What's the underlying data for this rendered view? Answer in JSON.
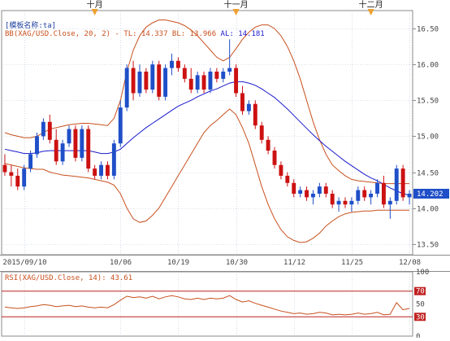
{
  "header": {
    "template_label": "[模板名称:ta]",
    "bb_label": "BB(XAG/USD.Close, 20, 2)  -",
    "tl_label": "TL: 14.337",
    "bl_label": "BL: 13.966",
    "al_label": "AL: 14.181",
    "rsi_label": "RSI(XAG/USD.Close, 14): 43.61"
  },
  "months": [
    {
      "label": "十月",
      "index": 14
    },
    {
      "label": "十一月",
      "index": 36
    },
    {
      "label": "十二月",
      "index": 57
    }
  ],
  "current_price_label": "14.202",
  "colors": {
    "up": "#1f4fc8",
    "down": "#cc1111",
    "ma": "#1a1acc",
    "band": "#c8501e",
    "rsi": "#c8501e",
    "rsi_level": "#c02020",
    "price_box": "#1f4fc8",
    "axis_text": "#444444",
    "marker": "#f0a030"
  },
  "chart_data": [
    {
      "type": "candlestick",
      "title": "",
      "series_name": "XAG/USD",
      "x_tick_labels": [
        {
          "label": "2015/09/10",
          "index": 3
        },
        {
          "label": "10/06",
          "index": 18
        },
        {
          "label": "10/19",
          "index": 27
        },
        {
          "label": "10/30",
          "index": 36
        },
        {
          "label": "11/12",
          "index": 45
        },
        {
          "label": "11/25",
          "index": 54
        },
        {
          "label": "12/08",
          "index": 63
        }
      ],
      "y_ticks": [
        13.5,
        14.0,
        14.5,
        15.0,
        15.5,
        16.0,
        16.5
      ],
      "ylim": [
        13.35,
        16.75
      ],
      "grid": true,
      "ohlc": [
        [
          14.6,
          14.75,
          14.45,
          14.5
        ],
        [
          14.5,
          14.6,
          14.3,
          14.45
        ],
        [
          14.45,
          14.55,
          14.25,
          14.3
        ],
        [
          14.3,
          14.6,
          14.25,
          14.55
        ],
        [
          14.55,
          14.8,
          14.5,
          14.75
        ],
        [
          14.75,
          15.05,
          14.7,
          15.0
        ],
        [
          15.0,
          15.25,
          14.95,
          15.2
        ],
        [
          15.2,
          15.3,
          14.9,
          14.95
        ],
        [
          14.95,
          15.1,
          14.6,
          14.65
        ],
        [
          14.65,
          14.95,
          14.6,
          14.9
        ],
        [
          14.9,
          15.15,
          14.85,
          15.1
        ],
        [
          15.1,
          15.15,
          14.65,
          14.7
        ],
        [
          14.7,
          15.15,
          14.65,
          15.1
        ],
        [
          15.1,
          15.15,
          14.5,
          14.55
        ],
        [
          14.55,
          14.6,
          14.4,
          14.45
        ],
        [
          14.45,
          14.65,
          14.4,
          14.6
        ],
        [
          14.6,
          14.65,
          14.4,
          14.45
        ],
        [
          14.45,
          14.95,
          14.4,
          14.9
        ],
        [
          14.9,
          15.5,
          14.85,
          15.4
        ],
        [
          15.4,
          16.0,
          15.35,
          15.95
        ],
        [
          15.95,
          16.05,
          15.5,
          15.6
        ],
        [
          15.6,
          16.0,
          15.55,
          15.9
        ],
        [
          15.9,
          15.95,
          15.6,
          15.65
        ],
        [
          15.65,
          16.05,
          15.6,
          16.0
        ],
        [
          16.0,
          16.05,
          15.5,
          15.55
        ],
        [
          15.55,
          16.0,
          15.5,
          15.95
        ],
        [
          15.95,
          16.15,
          15.85,
          16.05
        ],
        [
          16.05,
          16.1,
          15.9,
          15.95
        ],
        [
          15.95,
          16.0,
          15.75,
          15.8
        ],
        [
          15.8,
          15.95,
          15.6,
          15.65
        ],
        [
          15.65,
          15.9,
          15.6,
          15.85
        ],
        [
          15.85,
          15.9,
          15.6,
          15.65
        ],
        [
          15.65,
          15.95,
          15.6,
          15.9
        ],
        [
          15.9,
          15.95,
          15.75,
          15.8
        ],
        [
          15.8,
          15.95,
          15.75,
          15.9
        ],
        [
          15.9,
          16.35,
          15.85,
          15.95
        ],
        [
          15.95,
          16.0,
          15.55,
          15.6
        ],
        [
          15.6,
          15.7,
          15.3,
          15.35
        ],
        [
          15.35,
          15.5,
          15.3,
          15.45
        ],
        [
          15.45,
          15.5,
          15.1,
          15.15
        ],
        [
          15.15,
          15.2,
          14.9,
          14.95
        ],
        [
          14.95,
          15.0,
          14.75,
          14.8
        ],
        [
          14.8,
          14.85,
          14.55,
          14.6
        ],
        [
          14.6,
          14.65,
          14.4,
          14.45
        ],
        [
          14.45,
          14.5,
          14.3,
          14.35
        ],
        [
          14.35,
          14.4,
          14.15,
          14.2
        ],
        [
          14.2,
          14.3,
          14.15,
          14.25
        ],
        [
          14.25,
          14.3,
          14.1,
          14.15
        ],
        [
          14.15,
          14.25,
          14.05,
          14.2
        ],
        [
          14.2,
          14.35,
          14.15,
          14.3
        ],
        [
          14.3,
          14.35,
          14.15,
          14.2
        ],
        [
          14.2,
          14.25,
          14.0,
          14.05
        ],
        [
          14.05,
          14.15,
          13.95,
          14.1
        ],
        [
          14.1,
          14.15,
          14.0,
          14.05
        ],
        [
          14.05,
          14.15,
          13.95,
          14.1
        ],
        [
          14.1,
          14.3,
          14.05,
          14.25
        ],
        [
          14.25,
          14.3,
          14.1,
          14.15
        ],
        [
          14.15,
          14.25,
          14.05,
          14.2
        ],
        [
          14.2,
          14.4,
          14.15,
          14.35
        ],
        [
          14.35,
          14.45,
          14.0,
          14.05
        ],
        [
          14.05,
          14.15,
          13.85,
          14.1
        ],
        [
          14.1,
          14.6,
          14.05,
          14.55
        ],
        [
          14.55,
          14.6,
          14.1,
          14.15
        ],
        [
          14.15,
          14.25,
          14.05,
          14.2
        ]
      ],
      "ma": [
        14.82,
        14.8,
        14.78,
        14.76,
        14.76,
        14.77,
        14.79,
        14.8,
        14.8,
        14.8,
        14.8,
        14.8,
        14.8,
        14.8,
        14.78,
        14.76,
        14.76,
        14.78,
        14.82,
        14.9,
        14.98,
        15.05,
        15.12,
        15.18,
        15.24,
        15.3,
        15.36,
        15.42,
        15.46,
        15.5,
        15.55,
        15.59,
        15.63,
        15.66,
        15.7,
        15.74,
        15.76,
        15.76,
        15.74,
        15.71,
        15.66,
        15.6,
        15.54,
        15.46,
        15.38,
        15.29,
        15.2,
        15.11,
        15.02,
        14.94,
        14.86,
        14.79,
        14.72,
        14.65,
        14.59,
        14.53,
        14.47,
        14.42,
        14.38,
        14.33,
        14.28,
        14.24,
        14.2,
        14.18
      ],
      "upper_band": [
        15.05,
        15.02,
        15.0,
        14.98,
        14.98,
        15.0,
        15.05,
        15.1,
        15.12,
        15.14,
        15.16,
        15.17,
        15.18,
        15.18,
        15.17,
        15.16,
        15.15,
        15.25,
        15.5,
        15.9,
        16.2,
        16.4,
        16.52,
        16.58,
        16.62,
        16.62,
        16.6,
        16.58,
        16.54,
        16.48,
        16.4,
        16.3,
        16.2,
        16.1,
        16.05,
        16.1,
        16.22,
        16.35,
        16.45,
        16.52,
        16.55,
        16.55,
        16.5,
        16.4,
        16.25,
        16.05,
        15.8,
        15.5,
        15.2,
        14.95,
        14.75,
        14.6,
        14.52,
        14.45,
        14.4,
        14.38,
        14.37,
        14.36,
        14.35,
        14.34,
        14.34,
        14.34,
        14.34,
        14.34
      ],
      "lower_band": [
        14.62,
        14.6,
        14.58,
        14.56,
        14.55,
        14.54,
        14.54,
        14.5,
        14.48,
        14.46,
        14.45,
        14.44,
        14.43,
        14.42,
        14.4,
        14.38,
        14.36,
        14.32,
        14.2,
        14.0,
        13.85,
        13.8,
        13.82,
        13.9,
        14.0,
        14.15,
        14.3,
        14.45,
        14.6,
        14.75,
        14.9,
        15.05,
        15.15,
        15.22,
        15.3,
        15.38,
        15.3,
        15.12,
        14.9,
        14.6,
        14.3,
        14.05,
        13.85,
        13.7,
        13.6,
        13.55,
        13.52,
        13.53,
        13.58,
        13.65,
        13.75,
        13.82,
        13.88,
        13.92,
        13.94,
        13.95,
        13.96,
        13.96,
        13.97,
        13.97,
        13.97,
        13.97,
        13.97,
        13.97
      ]
    },
    {
      "type": "line",
      "title": "",
      "series_name": "RSI",
      "y_ticks": [
        0,
        30,
        50,
        70,
        100
      ],
      "ylim": [
        0,
        100
      ],
      "levels": [
        70,
        30
      ],
      "values": [
        45,
        44,
        43,
        44,
        46,
        47,
        49,
        48,
        46,
        47,
        48,
        46,
        47,
        45,
        44,
        45,
        44,
        49,
        56,
        62,
        60,
        61,
        59,
        62,
        58,
        61,
        63,
        61,
        58,
        57,
        59,
        57,
        59,
        58,
        59,
        63,
        57,
        53,
        55,
        51,
        48,
        45,
        42,
        39,
        37,
        35,
        36,
        34,
        35,
        37,
        36,
        33,
        34,
        33,
        34,
        36,
        34,
        35,
        37,
        33,
        34,
        52,
        41,
        43
      ]
    }
  ]
}
